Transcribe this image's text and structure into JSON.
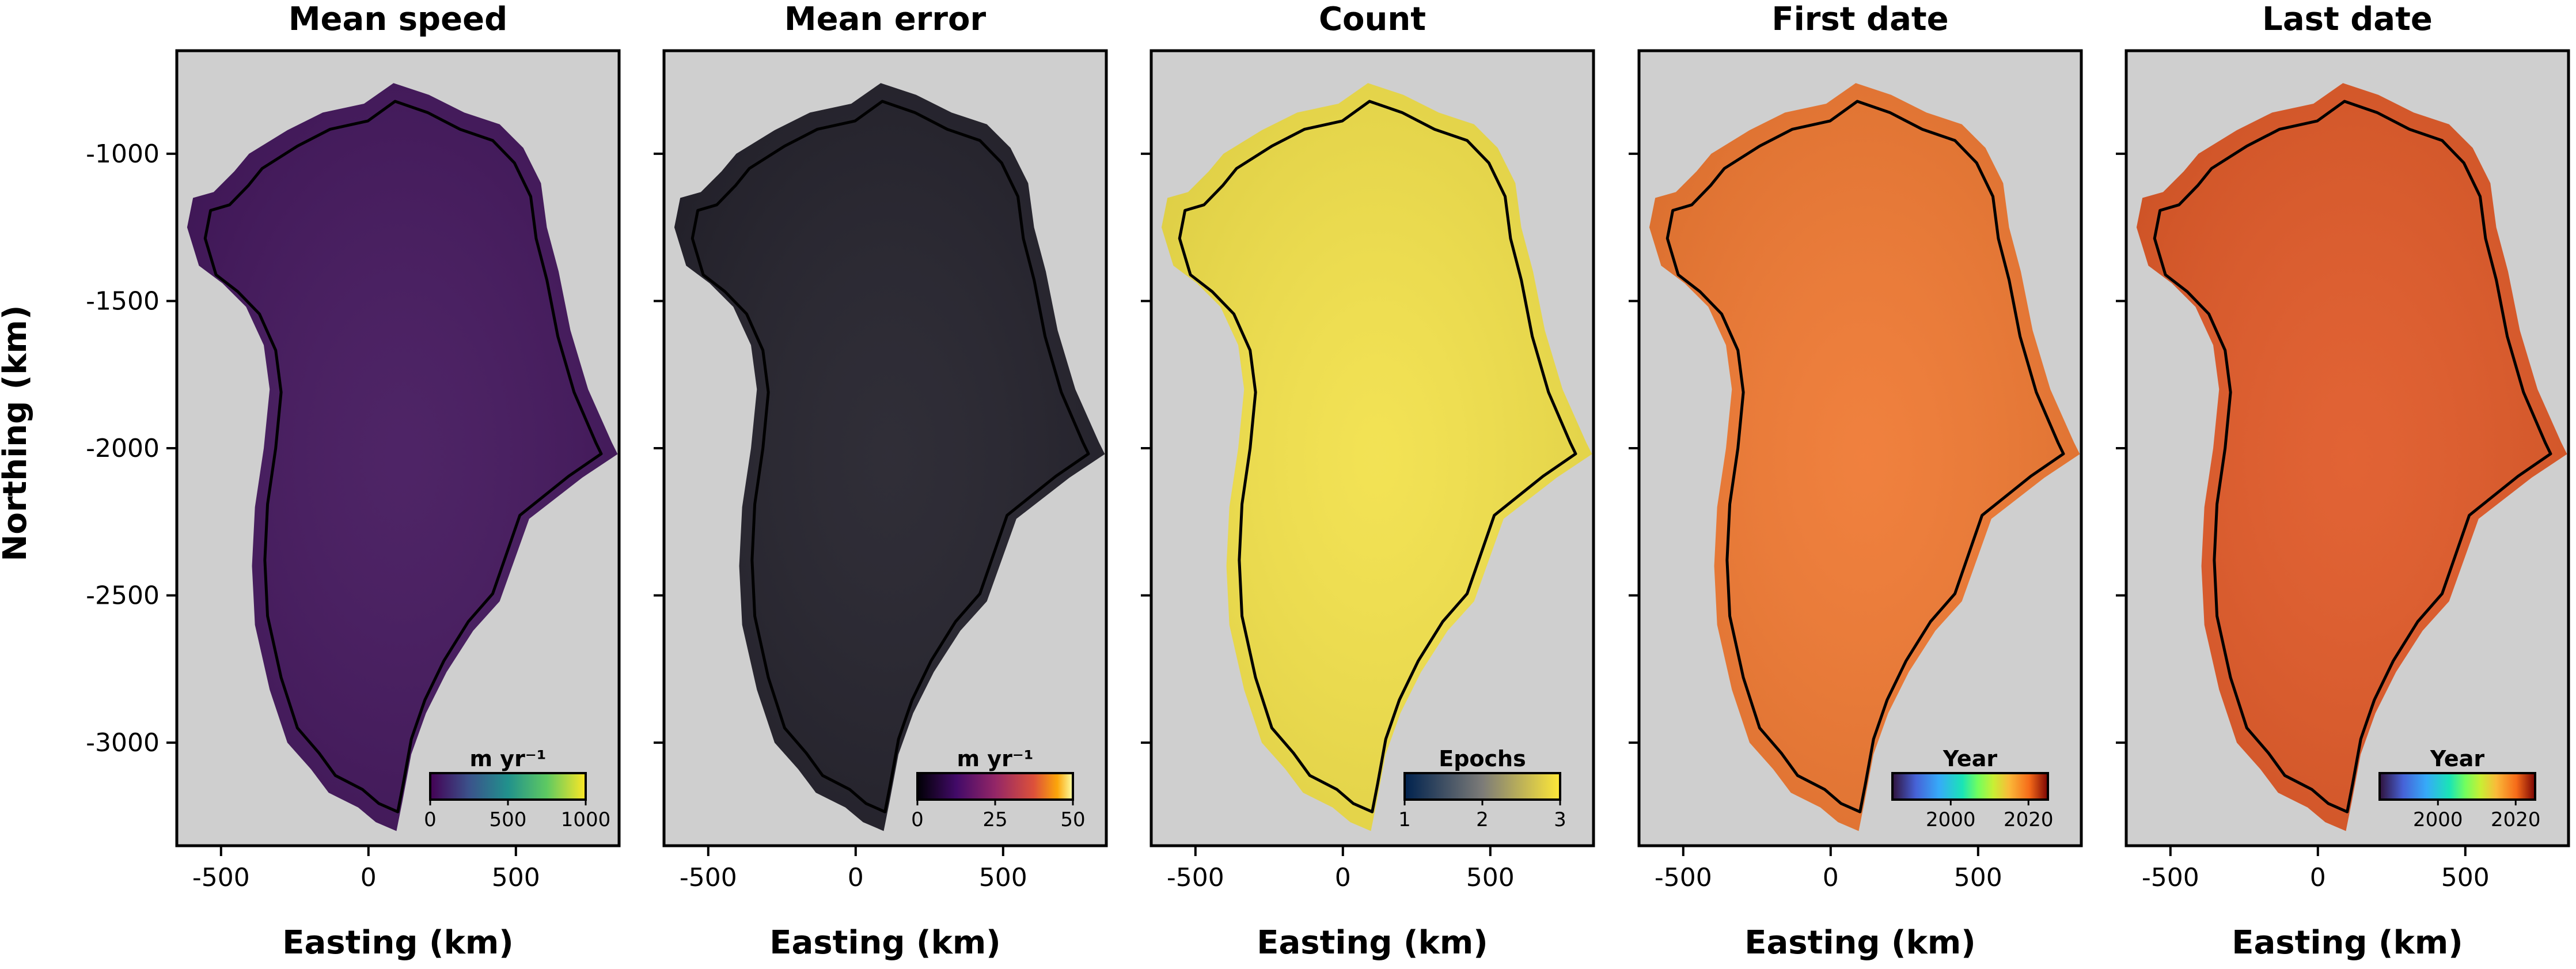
{
  "figure": {
    "ylabel": "Northing (km)",
    "xlabel": "Easting (km)"
  },
  "panels": [
    {
      "title": "Mean speed"
    },
    {
      "title": "Mean error"
    },
    {
      "title": "Count"
    },
    {
      "title": "First date"
    },
    {
      "title": "Last date"
    }
  ],
  "chart_data": [
    {
      "type": "heatmap",
      "title": "Mean speed",
      "xlabel": "Easting (km)",
      "ylabel": "Northing (km)",
      "xlim": [
        -650,
        850
      ],
      "ylim": [
        -3350,
        -650
      ],
      "xticks": [
        -500,
        0,
        500
      ],
      "yticks": [
        -1000,
        -1500,
        -2000,
        -2500,
        -3000
      ],
      "tick_labels_x": [
        "-500",
        "0",
        "500"
      ],
      "tick_labels_y": [
        "-1000",
        "-1500",
        "-2000",
        "-2500",
        "-3000"
      ],
      "colorbar": {
        "label": "m yr⁻¹",
        "ticks": [
          0,
          500,
          1000
        ],
        "tick_labels": [
          "0",
          "500",
          "1000"
        ],
        "colormap": "viridis"
      },
      "background_color": "#cfcfcf",
      "land_color": "#45195e"
    },
    {
      "type": "heatmap",
      "title": "Mean error",
      "xlabel": "Easting (km)",
      "xlim": [
        -650,
        850
      ],
      "xticks": [
        -500,
        0,
        500
      ],
      "tick_labels_x": [
        "-500",
        "0",
        "500"
      ],
      "colorbar": {
        "label": "m yr⁻¹",
        "ticks": [
          0,
          25,
          50
        ],
        "tick_labels": [
          "0",
          "25",
          "50"
        ],
        "colormap": "inferno"
      },
      "background_color": "#cfcfcf",
      "land_color": "#25232d"
    },
    {
      "type": "heatmap",
      "title": "Count",
      "xlabel": "Easting (km)",
      "xlim": [
        -650,
        850
      ],
      "xticks": [
        -500,
        0,
        500
      ],
      "tick_labels_x": [
        "-500",
        "0",
        "500"
      ],
      "colorbar": {
        "label": "Epochs",
        "ticks": [
          1,
          2,
          3
        ],
        "tick_labels": [
          "1",
          "2",
          "3"
        ],
        "colormap": "cividis"
      },
      "background_color": "#cfcfcf",
      "land_color": "#f2e14c"
    },
    {
      "type": "heatmap",
      "title": "First date",
      "xlabel": "Easting (km)",
      "xlim": [
        -650,
        850
      ],
      "xticks": [
        -500,
        0,
        500
      ],
      "tick_labels_x": [
        "-500",
        "0",
        "500"
      ],
      "colorbar": {
        "label": "Year",
        "ticks": [
          2000,
          2020
        ],
        "tick_labels": [
          "2000",
          "2020"
        ],
        "colormap": "turbo"
      },
      "background_color": "#cfcfcf",
      "land_color": "#ef7a34"
    },
    {
      "type": "heatmap",
      "title": "Last date",
      "xlabel": "Easting (km)",
      "xlim": [
        -650,
        850
      ],
      "xticks": [
        -500,
        0,
        500
      ],
      "tick_labels_x": [
        "-500",
        "0",
        "500"
      ],
      "colorbar": {
        "label": "Year",
        "ticks": [
          2000,
          2020
        ],
        "tick_labels": [
          "2000",
          "2020"
        ],
        "colormap": "turbo"
      },
      "background_color": "#cfcfcf",
      "land_color": "#e05b2a"
    }
  ]
}
